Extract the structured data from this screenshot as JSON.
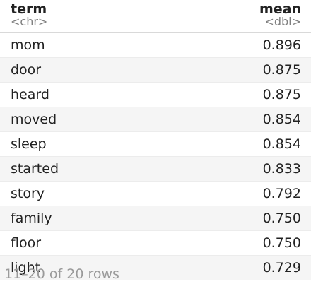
{
  "table": {
    "columns": [
      {
        "name": "term",
        "type": "<chr>"
      },
      {
        "name": "mean",
        "type": "<dbl>"
      }
    ],
    "rows": [
      {
        "term": "mom",
        "mean": "0.896"
      },
      {
        "term": "door",
        "mean": "0.875"
      },
      {
        "term": "heard",
        "mean": "0.875"
      },
      {
        "term": "moved",
        "mean": "0.854"
      },
      {
        "term": "sleep",
        "mean": "0.854"
      },
      {
        "term": "started",
        "mean": "0.833"
      },
      {
        "term": "story",
        "mean": "0.792"
      },
      {
        "term": "family",
        "mean": "0.750"
      },
      {
        "term": "floor",
        "mean": "0.750"
      },
      {
        "term": "light",
        "mean": "0.729"
      }
    ]
  },
  "footer": {
    "rows_info": "11–20 of 20 rows"
  }
}
